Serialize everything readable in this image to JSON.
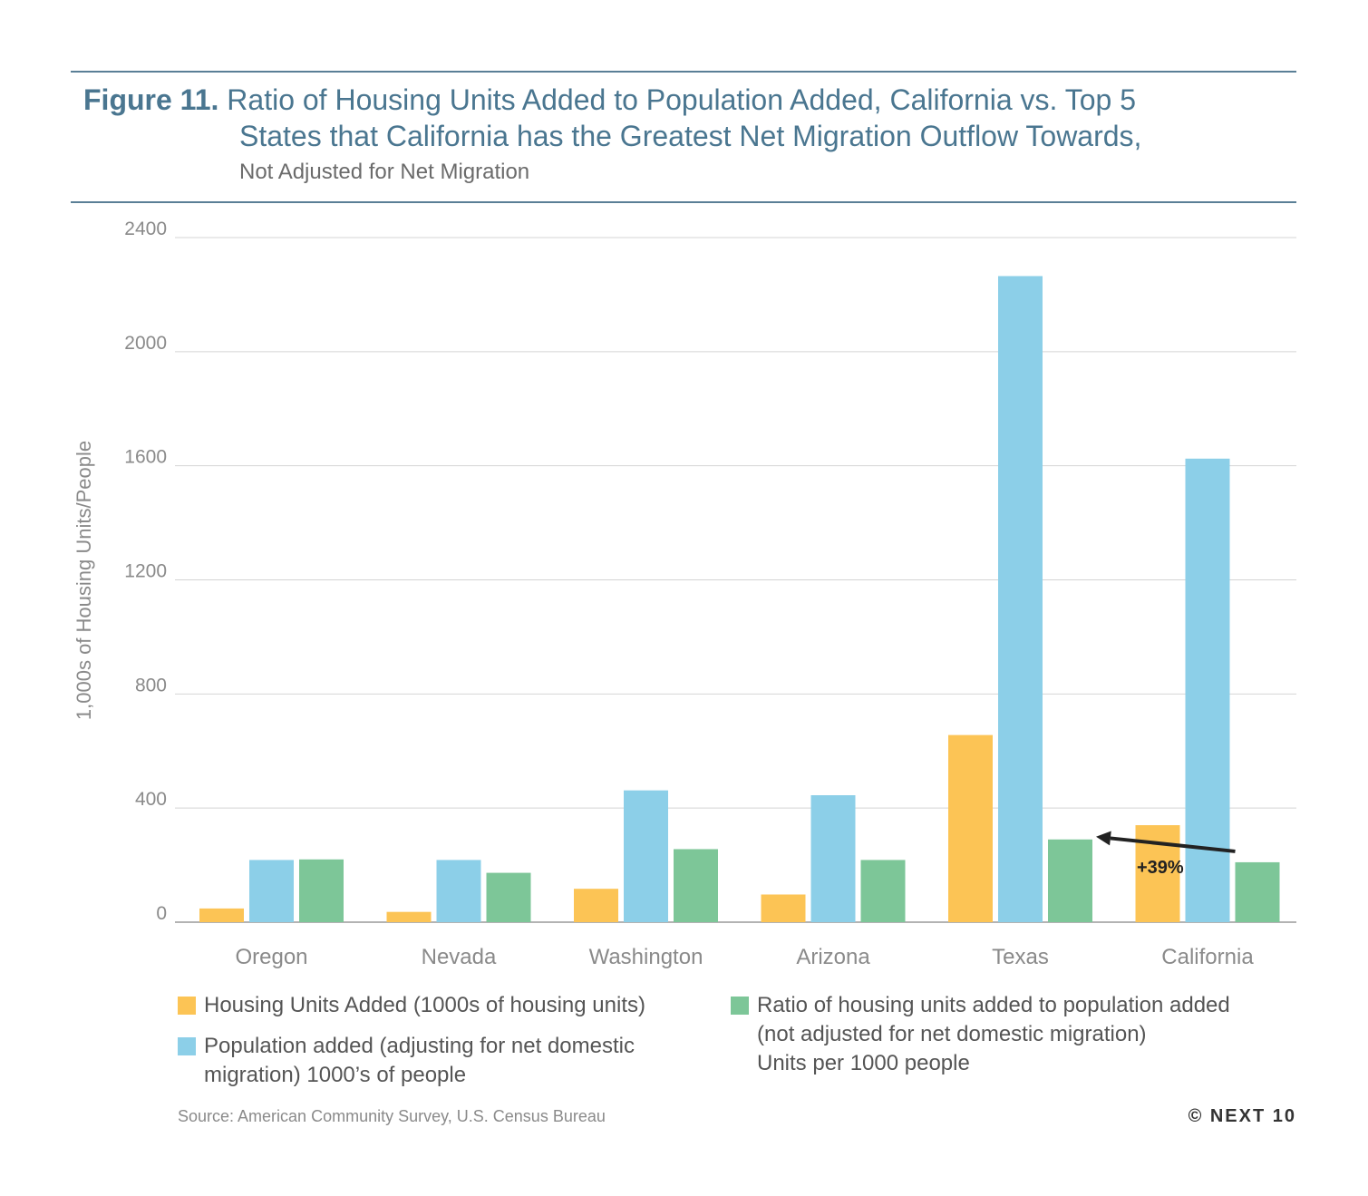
{
  "header": {
    "figure_label": "Figure 11.",
    "title_line1": "Ratio of Housing Units Added to Population Added, California vs. Top 5",
    "title_line2": "States that California has the Greatest Net Migration Outflow Towards,",
    "subtitle": "Not Adjusted for Net Migration"
  },
  "chart_data": {
    "type": "bar",
    "categories": [
      "Oregon",
      "Nevada",
      "Washington",
      "Arizona",
      "Texas",
      "California"
    ],
    "series": [
      {
        "name": "Housing Units Added (1000s of housing units)",
        "color": "#fcc455",
        "values": [
          48,
          36,
          117,
          97,
          656,
          340
        ]
      },
      {
        "name": "Population added (adjusting for net domestic migration) 1000’s of people",
        "color": "#8ccfe8",
        "values": [
          218,
          218,
          462,
          445,
          2265,
          1625
        ]
      },
      {
        "name": "Ratio of housing units added to population added (not adjusted for net domestic migration) Units per 1000 people",
        "color": "#7dc698",
        "values": [
          220,
          173,
          256,
          218,
          290,
          210
        ]
      }
    ],
    "ylabel": "1,000s of Housing Units/People",
    "ylim": [
      0,
      2400
    ],
    "yticks": [
      0,
      400,
      800,
      1200,
      1600,
      2000,
      2400
    ],
    "grid": true,
    "legend_position": "bottom",
    "annotation": {
      "text": "+39%",
      "from_category": "California",
      "to_category": "Texas",
      "series": 2
    }
  },
  "legend": {
    "housing": "Housing Units Added (1000s of housing units)",
    "population_line1": "Population added (adjusting for net domestic",
    "population_line2": "migration) 1000’s of people",
    "ratio_line1": "Ratio of housing units added to population added",
    "ratio_line2": "(not adjusted for net domestic migration)",
    "ratio_line3": "Units per 1000 people"
  },
  "footer": {
    "source": "Source: American Community Survey, U.S. Census Bureau",
    "copyright": "© NEXT 10"
  }
}
